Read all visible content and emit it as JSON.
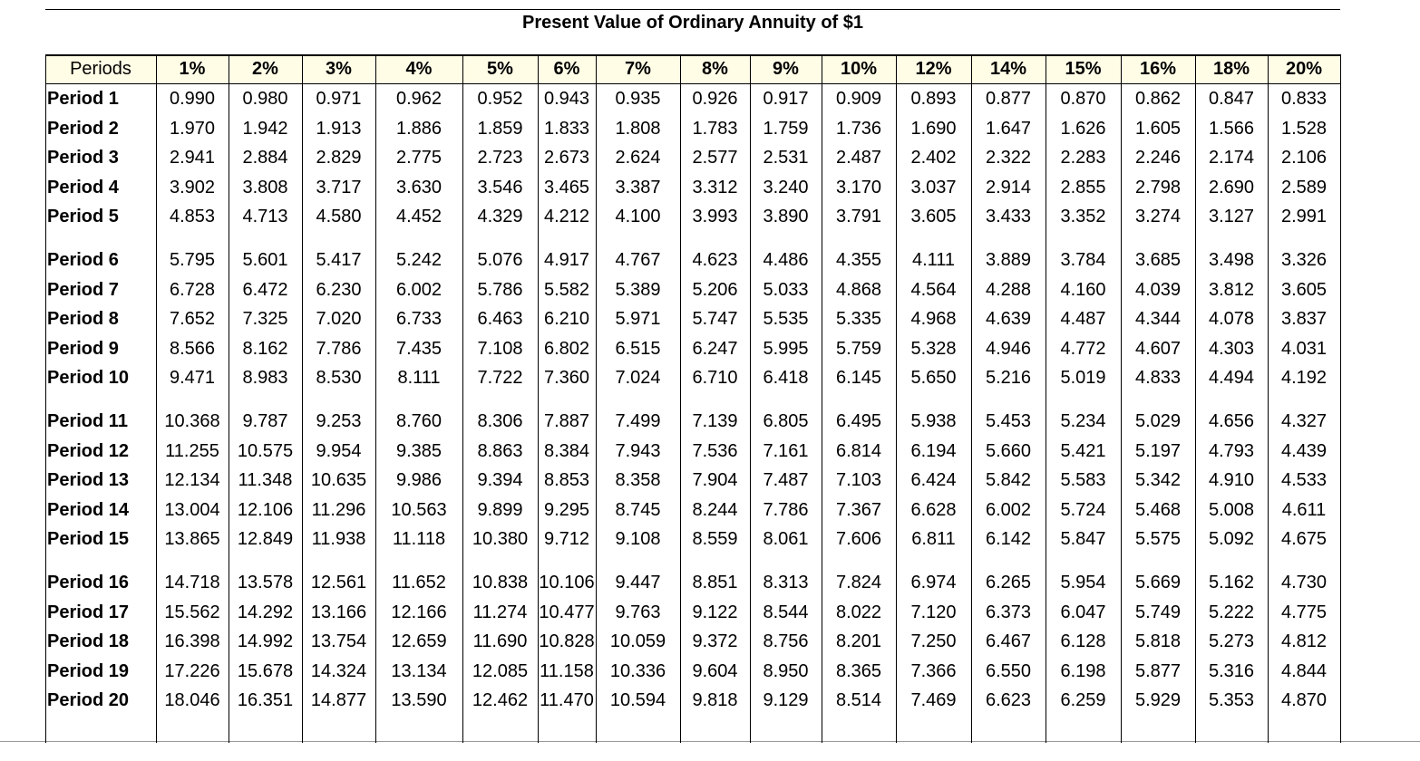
{
  "title": "Present Value of Ordinary Annuity of $1",
  "header": [
    "Periods",
    "1%",
    "2%",
    "3%",
    "4%",
    "5%",
    "6%",
    "7%",
    "8%",
    "9%",
    "10%",
    "12%",
    "14%",
    "15%",
    "16%",
    "18%",
    "20%"
  ],
  "rows": [
    [
      "Period 1",
      "0.990",
      "0.980",
      "0.971",
      "0.962",
      "0.952",
      "0.943",
      "0.935",
      "0.926",
      "0.917",
      "0.909",
      "0.893",
      "0.877",
      "0.870",
      "0.862",
      "0.847",
      "0.833"
    ],
    [
      "Period 2",
      "1.970",
      "1.942",
      "1.913",
      "1.886",
      "1.859",
      "1.833",
      "1.808",
      "1.783",
      "1.759",
      "1.736",
      "1.690",
      "1.647",
      "1.626",
      "1.605",
      "1.566",
      "1.528"
    ],
    [
      "Period 3",
      "2.941",
      "2.884",
      "2.829",
      "2.775",
      "2.723",
      "2.673",
      "2.624",
      "2.577",
      "2.531",
      "2.487",
      "2.402",
      "2.322",
      "2.283",
      "2.246",
      "2.174",
      "2.106"
    ],
    [
      "Period 4",
      "3.902",
      "3.808",
      "3.717",
      "3.630",
      "3.546",
      "3.465",
      "3.387",
      "3.312",
      "3.240",
      "3.170",
      "3.037",
      "2.914",
      "2.855",
      "2.798",
      "2.690",
      "2.589"
    ],
    [
      "Period 5",
      "4.853",
      "4.713",
      "4.580",
      "4.452",
      "4.329",
      "4.212",
      "4.100",
      "3.993",
      "3.890",
      "3.791",
      "3.605",
      "3.433",
      "3.352",
      "3.274",
      "3.127",
      "2.991"
    ],
    [
      "Period 6",
      "5.795",
      "5.601",
      "5.417",
      "5.242",
      "5.076",
      "4.917",
      "4.767",
      "4.623",
      "4.486",
      "4.355",
      "4.111",
      "3.889",
      "3.784",
      "3.685",
      "3.498",
      "3.326"
    ],
    [
      "Period 7",
      "6.728",
      "6.472",
      "6.230",
      "6.002",
      "5.786",
      "5.582",
      "5.389",
      "5.206",
      "5.033",
      "4.868",
      "4.564",
      "4.288",
      "4.160",
      "4.039",
      "3.812",
      "3.605"
    ],
    [
      "Period 8",
      "7.652",
      "7.325",
      "7.020",
      "6.733",
      "6.463",
      "6.210",
      "5.971",
      "5.747",
      "5.535",
      "5.335",
      "4.968",
      "4.639",
      "4.487",
      "4.344",
      "4.078",
      "3.837"
    ],
    [
      "Period 9",
      "8.566",
      "8.162",
      "7.786",
      "7.435",
      "7.108",
      "6.802",
      "6.515",
      "6.247",
      "5.995",
      "5.759",
      "5.328",
      "4.946",
      "4.772",
      "4.607",
      "4.303",
      "4.031"
    ],
    [
      "Period 10",
      "9.471",
      "8.983",
      "8.530",
      "8.111",
      "7.722",
      "7.360",
      "7.024",
      "6.710",
      "6.418",
      "6.145",
      "5.650",
      "5.216",
      "5.019",
      "4.833",
      "4.494",
      "4.192"
    ],
    [
      "Period 11",
      "10.368",
      "9.787",
      "9.253",
      "8.760",
      "8.306",
      "7.887",
      "7.499",
      "7.139",
      "6.805",
      "6.495",
      "5.938",
      "5.453",
      "5.234",
      "5.029",
      "4.656",
      "4.327"
    ],
    [
      "Period 12",
      "11.255",
      "10.575",
      "9.954",
      "9.385",
      "8.863",
      "8.384",
      "7.943",
      "7.536",
      "7.161",
      "6.814",
      "6.194",
      "5.660",
      "5.421",
      "5.197",
      "4.793",
      "4.439"
    ],
    [
      "Period 13",
      "12.134",
      "11.348",
      "10.635",
      "9.986",
      "9.394",
      "8.853",
      "8.358",
      "7.904",
      "7.487",
      "7.103",
      "6.424",
      "5.842",
      "5.583",
      "5.342",
      "4.910",
      "4.533"
    ],
    [
      "Period 14",
      "13.004",
      "12.106",
      "11.296",
      "10.563",
      "9.899",
      "9.295",
      "8.745",
      "8.244",
      "7.786",
      "7.367",
      "6.628",
      "6.002",
      "5.724",
      "5.468",
      "5.008",
      "4.611"
    ],
    [
      "Period 15",
      "13.865",
      "12.849",
      "11.938",
      "11.118",
      "10.380",
      "9.712",
      "9.108",
      "8.559",
      "8.061",
      "7.606",
      "6.811",
      "6.142",
      "5.847",
      "5.575",
      "5.092",
      "4.675"
    ],
    [
      "Period 16",
      "14.718",
      "13.578",
      "12.561",
      "11.652",
      "10.838",
      "10.106",
      "9.447",
      "8.851",
      "8.313",
      "7.824",
      "6.974",
      "6.265",
      "5.954",
      "5.669",
      "5.162",
      "4.730"
    ],
    [
      "Period 17",
      "15.562",
      "14.292",
      "13.166",
      "12.166",
      "11.274",
      "10.477",
      "9.763",
      "9.122",
      "8.544",
      "8.022",
      "7.120",
      "6.373",
      "6.047",
      "5.749",
      "5.222",
      "4.775"
    ],
    [
      "Period 18",
      "16.398",
      "14.992",
      "13.754",
      "12.659",
      "11.690",
      "10.828",
      "10.059",
      "9.372",
      "8.756",
      "8.201",
      "7.250",
      "6.467",
      "6.128",
      "5.818",
      "5.273",
      "4.812"
    ],
    [
      "Period 19",
      "17.226",
      "15.678",
      "14.324",
      "13.134",
      "12.085",
      "11.158",
      "10.336",
      "9.604",
      "8.950",
      "8.365",
      "7.366",
      "6.550",
      "6.198",
      "5.877",
      "5.316",
      "4.844"
    ],
    [
      "Period 20",
      "18.046",
      "16.351",
      "14.877",
      "13.590",
      "12.462",
      "11.470",
      "10.594",
      "9.818",
      "9.129",
      "8.514",
      "7.469",
      "6.623",
      "6.259",
      "5.929",
      "5.353",
      "4.870"
    ]
  ]
}
